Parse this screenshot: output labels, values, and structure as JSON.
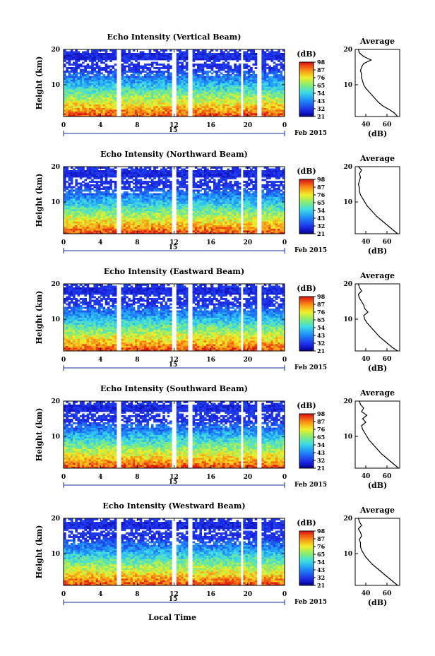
{
  "figure": {
    "x_axis_label": "Local Time",
    "date_label": "Feb 2015",
    "date_tick": "15",
    "avg_title": "Average",
    "avg_xlabel": "(dB)",
    "y_axis_label": "Height (km)",
    "colorbar_unit": "(dB)"
  },
  "chart_data": [
    {
      "type": "heatmap",
      "title": "Echo Intensity (Vertical Beam)",
      "xlabel": "",
      "ylabel": "Height (km)",
      "xlim": [
        0,
        24
      ],
      "ylim": [
        1,
        20
      ],
      "x_ticks": [
        "0",
        "4",
        "8",
        "12",
        "16",
        "20",
        "0"
      ],
      "y_ticks": [
        "10",
        "20"
      ],
      "colorbar_ticks": [
        "21",
        "32",
        "43",
        "54",
        "65",
        "76",
        "87",
        "98"
      ],
      "gaps_hours": [
        [
          5.8,
          6.2
        ],
        [
          11.8,
          12.2
        ],
        [
          13.4,
          14.0
        ],
        [
          19.2,
          19.6
        ],
        [
          21.0,
          21.6
        ]
      ],
      "average_profile": {
        "title": "Average",
        "xlabel": "(dB)",
        "xlim": [
          30,
          72
        ],
        "x_ticks": [
          "40",
          "60"
        ],
        "height_km": [
          1,
          2,
          3,
          4,
          5,
          6,
          7,
          8,
          9,
          10,
          11,
          12,
          13,
          14,
          15,
          16,
          17,
          18,
          19,
          20
        ],
        "echo_db": [
          70,
          67,
          62,
          56,
          52,
          49,
          46,
          43,
          40,
          38,
          37,
          36,
          36,
          35,
          36,
          38,
          45,
          38,
          34,
          33
        ]
      }
    },
    {
      "type": "heatmap",
      "title": "Echo Intensity (Northward Beam)",
      "xlabel": "",
      "ylabel": "Height (km)",
      "xlim": [
        0,
        24
      ],
      "ylim": [
        1,
        20
      ],
      "x_ticks": [
        "0",
        "4",
        "8",
        "12",
        "16",
        "20",
        "0"
      ],
      "y_ticks": [
        "10",
        "20"
      ],
      "colorbar_ticks": [
        "21",
        "32",
        "43",
        "54",
        "65",
        "76",
        "87",
        "98"
      ],
      "gaps_hours": [
        [
          5.8,
          6.2
        ],
        [
          11.8,
          12.2
        ],
        [
          13.4,
          14.0
        ],
        [
          19.2,
          19.6
        ],
        [
          21.0,
          21.6
        ]
      ],
      "average_profile": {
        "title": "Average",
        "xlabel": "(dB)",
        "xlim": [
          30,
          72
        ],
        "x_ticks": [
          "40",
          "60"
        ],
        "height_km": [
          1,
          2,
          3,
          4,
          5,
          6,
          7,
          8,
          9,
          10,
          11,
          12,
          13,
          14,
          15,
          16,
          17,
          18,
          19,
          20
        ],
        "echo_db": [
          70,
          66,
          62,
          58,
          54,
          50,
          47,
          44,
          41,
          39,
          37,
          35,
          34,
          34,
          33,
          34,
          35,
          34,
          36,
          33
        ]
      }
    },
    {
      "type": "heatmap",
      "title": "Echo Intensity (Eastward Beam)",
      "xlabel": "",
      "ylabel": "Height (km)",
      "xlim": [
        0,
        24
      ],
      "ylim": [
        1,
        20
      ],
      "x_ticks": [
        "0",
        "4",
        "8",
        "12",
        "16",
        "20",
        "0"
      ],
      "y_ticks": [
        "10",
        "20"
      ],
      "colorbar_ticks": [
        "21",
        "32",
        "43",
        "54",
        "65",
        "76",
        "87",
        "98"
      ],
      "gaps_hours": [
        [
          5.8,
          6.2
        ],
        [
          11.8,
          12.2
        ],
        [
          13.4,
          14.0
        ],
        [
          19.2,
          19.6
        ],
        [
          21.0,
          21.6
        ]
      ],
      "average_profile": {
        "title": "Average",
        "xlabel": "(dB)",
        "xlim": [
          30,
          72
        ],
        "x_ticks": [
          "40",
          "60"
        ],
        "height_km": [
          1,
          2,
          3,
          4,
          5,
          6,
          7,
          8,
          9,
          10,
          11,
          12,
          13,
          14,
          15,
          16,
          17,
          18,
          19,
          20
        ],
        "echo_db": [
          70,
          65,
          61,
          57,
          53,
          50,
          47,
          44,
          41,
          39,
          38,
          42,
          39,
          38,
          36,
          34,
          33,
          36,
          34,
          33
        ]
      }
    },
    {
      "type": "heatmap",
      "title": "Echo Intensity (Southward Beam)",
      "xlabel": "",
      "ylabel": "Height (km)",
      "xlim": [
        0,
        24
      ],
      "ylim": [
        1,
        20
      ],
      "x_ticks": [
        "0",
        "4",
        "8",
        "12",
        "16",
        "20",
        "0"
      ],
      "y_ticks": [
        "10",
        "20"
      ],
      "colorbar_ticks": [
        "21",
        "32",
        "43",
        "54",
        "65",
        "76",
        "87",
        "98"
      ],
      "gaps_hours": [
        [
          5.8,
          6.2
        ],
        [
          11.8,
          12.2
        ],
        [
          13.4,
          14.0
        ],
        [
          19.2,
          19.6
        ],
        [
          21.0,
          21.6
        ]
      ],
      "average_profile": {
        "title": "Average",
        "xlabel": "(dB)",
        "xlim": [
          30,
          72
        ],
        "x_ticks": [
          "40",
          "60"
        ],
        "height_km": [
          1,
          2,
          3,
          4,
          5,
          6,
          7,
          8,
          9,
          10,
          11,
          12,
          13,
          14,
          15,
          16,
          17,
          18,
          19,
          20
        ],
        "echo_db": [
          71,
          67,
          63,
          59,
          55,
          52,
          49,
          46,
          43,
          41,
          39,
          37,
          36,
          40,
          37,
          41,
          36,
          38,
          35,
          34
        ]
      }
    },
    {
      "type": "heatmap",
      "title": "Echo Intensity (Westward Beam)",
      "xlabel": "Local Time",
      "ylabel": "Height (km)",
      "xlim": [
        0,
        24
      ],
      "ylim": [
        1,
        20
      ],
      "x_ticks": [
        "0",
        "4",
        "8",
        "12",
        "16",
        "20",
        "0"
      ],
      "y_ticks": [
        "10",
        "20"
      ],
      "colorbar_ticks": [
        "21",
        "32",
        "43",
        "54",
        "65",
        "76",
        "87",
        "98"
      ],
      "gaps_hours": [
        [
          5.8,
          6.2
        ],
        [
          11.8,
          12.2
        ],
        [
          13.4,
          14.0
        ],
        [
          19.2,
          19.6
        ],
        [
          21.0,
          21.6
        ]
      ],
      "average_profile": {
        "title": "Average",
        "xlabel": "(dB)",
        "xlim": [
          30,
          72
        ],
        "x_ticks": [
          "40",
          "60"
        ],
        "height_km": [
          1,
          2,
          3,
          4,
          5,
          6,
          7,
          8,
          9,
          10,
          11,
          12,
          13,
          14,
          15,
          16,
          17,
          18,
          19,
          20
        ],
        "echo_db": [
          70,
          66,
          62,
          58,
          54,
          50,
          46,
          43,
          40,
          38,
          36,
          35,
          35,
          34,
          36,
          35,
          33,
          36,
          34,
          33
        ]
      }
    }
  ]
}
